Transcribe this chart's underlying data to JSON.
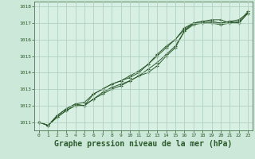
{
  "background_color": "#cbe8d8",
  "plot_bg_color": "#d8f0e4",
  "grid_color": "#aaccbb",
  "line_color": "#2d5a2d",
  "xlabel": "Graphe pression niveau de la mer (hPa)",
  "xlabel_fontsize": 7,
  "ylim": [
    1010.5,
    1018.3
  ],
  "xlim": [
    -0.5,
    23.5
  ],
  "yticks": [
    1011,
    1012,
    1013,
    1014,
    1015,
    1016,
    1017,
    1018
  ],
  "xticks": [
    0,
    1,
    2,
    3,
    4,
    5,
    6,
    7,
    8,
    9,
    10,
    11,
    12,
    13,
    14,
    15,
    16,
    17,
    18,
    19,
    20,
    21,
    22,
    23
  ],
  "series": [
    [
      1011.0,
      1010.8,
      1011.3,
      1011.7,
      1012.0,
      1012.0,
      1012.4,
      1012.7,
      1013.0,
      1013.2,
      1013.5,
      1013.8,
      1014.0,
      1014.4,
      1015.0,
      1015.5,
      1016.5,
      1017.0,
      1017.1,
      1017.1,
      1017.0,
      1017.1,
      1017.2,
      1017.6
    ],
    [
      1011.0,
      1010.8,
      1011.4,
      1011.8,
      1012.1,
      1012.2,
      1012.7,
      1013.0,
      1013.3,
      1013.5,
      1013.7,
      1014.0,
      1014.5,
      1015.1,
      1015.6,
      1016.0,
      1016.6,
      1017.0,
      1017.1,
      1017.2,
      1017.2,
      1017.0,
      1017.1,
      1017.7
    ],
    [
      1011.0,
      1010.8,
      1011.4,
      1011.8,
      1012.1,
      1012.0,
      1012.7,
      1013.0,
      1013.3,
      1013.5,
      1013.8,
      1014.1,
      1014.5,
      1015.0,
      1015.5,
      1016.0,
      1016.7,
      1017.0,
      1017.0,
      1017.0,
      1017.0,
      1017.1,
      1017.0,
      1017.6
    ],
    [
      1011.0,
      1010.8,
      1011.3,
      1011.7,
      1012.0,
      1012.0,
      1012.4,
      1012.8,
      1013.1,
      1013.3,
      1013.5,
      1013.8,
      1014.2,
      1014.6,
      1015.1,
      1015.6,
      1016.5,
      1016.9,
      1017.0,
      1017.0,
      1016.9,
      1017.0,
      1017.0,
      1017.6
    ]
  ]
}
